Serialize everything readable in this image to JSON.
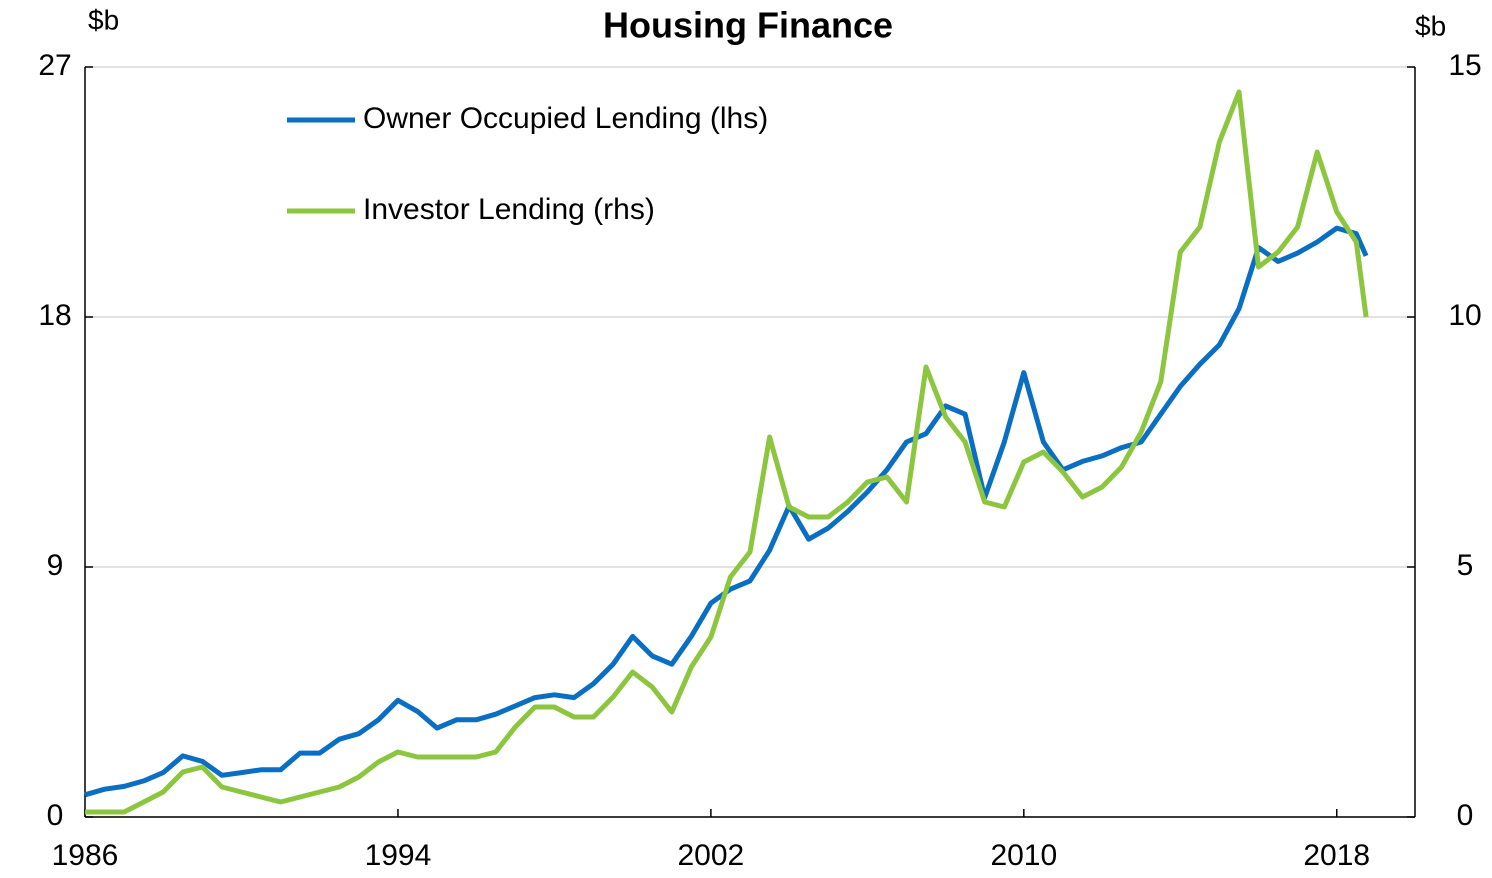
{
  "chart_data": {
    "type": "line",
    "title": "Housing Finance",
    "y_label": "$b",
    "y2_label": "$b",
    "x": [
      1986,
      1986.5,
      1987,
      1987.5,
      1988,
      1988.5,
      1989,
      1989.5,
      1990,
      1990.5,
      1991,
      1991.5,
      1992,
      1992.5,
      1993,
      1993.5,
      1994,
      1994.5,
      1995,
      1995.5,
      1996,
      1996.5,
      1997,
      1997.5,
      1998,
      1998.5,
      1999,
      1999.5,
      2000,
      2000.5,
      2001,
      2001.5,
      2002,
      2002.5,
      2003,
      2003.5,
      2004,
      2004.5,
      2005,
      2005.5,
      2006,
      2006.5,
      2007,
      2007.5,
      2008,
      2008.5,
      2009,
      2009.5,
      2010,
      2010.5,
      2011,
      2011.5,
      2012,
      2012.5,
      2013,
      2013.5,
      2014,
      2014.5,
      2015,
      2015.5,
      2016,
      2016.5,
      2017,
      2017.5,
      2018,
      2018.5,
      2018.75
    ],
    "series": [
      {
        "name": "Owner Occupied Lending (lhs)",
        "color": "#0a6fc2",
        "axis": "y",
        "values": [
          0.8,
          1.0,
          1.1,
          1.3,
          1.6,
          2.2,
          2.0,
          1.5,
          1.6,
          1.7,
          1.7,
          2.3,
          2.3,
          2.8,
          3.0,
          3.5,
          4.2,
          3.8,
          3.2,
          3.5,
          3.5,
          3.7,
          4.0,
          4.3,
          4.4,
          4.3,
          4.8,
          5.5,
          6.5,
          5.8,
          5.5,
          6.5,
          7.7,
          8.2,
          8.5,
          9.6,
          11.2,
          10.0,
          10.4,
          11.0,
          11.7,
          12.5,
          13.5,
          13.8,
          14.8,
          14.5,
          11.5,
          13.5,
          16.0,
          13.5,
          12.5,
          12.8,
          13.0,
          13.3,
          13.5,
          14.5,
          15.5,
          16.3,
          17.0,
          18.3,
          20.5,
          20.0,
          20.3,
          20.7,
          21.2,
          21.0,
          20.2
        ]
      },
      {
        "name": "Investor Lending (rhs)",
        "color": "#8cc63f",
        "axis": "y2",
        "values": [
          0.1,
          0.1,
          0.1,
          0.3,
          0.5,
          0.9,
          1.0,
          0.6,
          0.5,
          0.4,
          0.3,
          0.4,
          0.5,
          0.6,
          0.8,
          1.1,
          1.3,
          1.2,
          1.2,
          1.2,
          1.2,
          1.3,
          1.8,
          2.2,
          2.2,
          2.0,
          2.0,
          2.4,
          2.9,
          2.6,
          2.1,
          3.0,
          3.6,
          4.8,
          5.3,
          7.6,
          6.2,
          6.0,
          6.0,
          6.3,
          6.7,
          6.8,
          6.3,
          9.0,
          8.0,
          7.5,
          6.3,
          6.2,
          7.1,
          7.3,
          6.9,
          6.4,
          6.6,
          7.0,
          7.7,
          8.7,
          11.3,
          11.8,
          13.5,
          14.5,
          11.0,
          11.3,
          11.8,
          13.3,
          12.1,
          11.5,
          10.0
        ]
      }
    ],
    "xlim": [
      1986,
      2020
    ],
    "xticks": [
      1986,
      1994,
      2002,
      2010,
      2018
    ],
    "ylim": [
      0,
      27
    ],
    "yticks": [
      0,
      9,
      18,
      27
    ],
    "y2lim": [
      0,
      15
    ],
    "y2ticks": [
      0,
      5,
      10,
      15
    ],
    "grid": true,
    "legend": "upper left"
  }
}
